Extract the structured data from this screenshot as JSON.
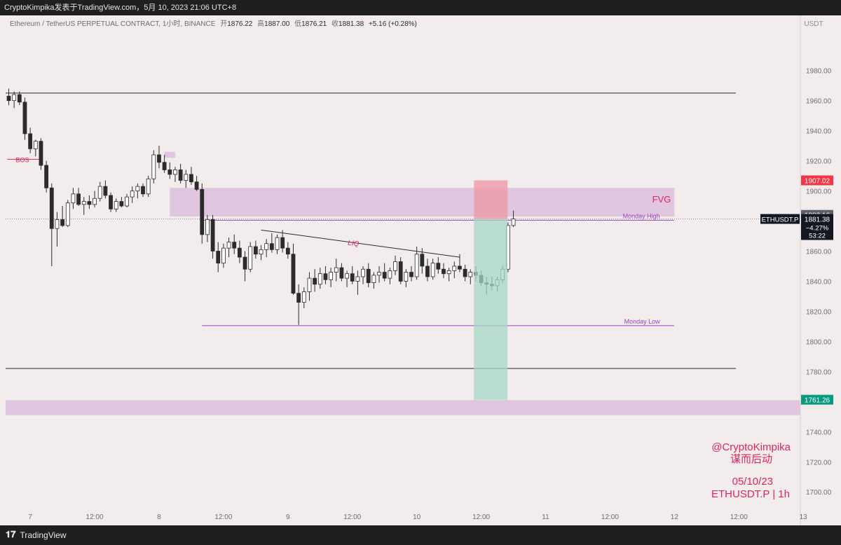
{
  "header": {
    "publish_line": "CryptoKimpika发表于TradingView.com，5月 10, 2023 21:06 UTC+8"
  },
  "footer": {
    "brand": "TradingView",
    "logo_icon": "tradingview-logo-icon"
  },
  "symbol_bar": {
    "symbol": "Ethereum / TetherUS PERPETUAL CONTRACT, 1小时, BINANCE",
    "open_label": "开",
    "open": "1876.22",
    "high_label": "高",
    "high": "1887.00",
    "low_label": "低",
    "low": "1876.21",
    "close_label": "收",
    "close": "1881.38",
    "change": "+5.16 (+0.28%)"
  },
  "watermark": {
    "handle": "@CryptoKimpika",
    "tagline": "谋而后动",
    "date": "05/10/23",
    "pair_tf": "ETHUSDT.P | 1h"
  },
  "colors": {
    "background": "#f3eced",
    "up_candle": "#ffffff",
    "down_candle": "#2b2b2b",
    "wick": "#2b2b2b",
    "zone_fill": "#dcc1dc",
    "monday_line": "#9c3fbf",
    "label_pink": "#e0235e",
    "stop_zone": "#ec9aa6",
    "target_zone": "#a6d8c6",
    "price_tag_red": "#f23645",
    "price_tag_green": "#089981",
    "price_tag_gray": "#5d606b",
    "last_price_tag": "#131722"
  },
  "chart_data": {
    "type": "candlestick",
    "currency": "USDT",
    "timeframe": "1h",
    "ylim": [
      1688,
      1998
    ],
    "y_ticks": [
      1700,
      1720,
      1740,
      1760,
      1780,
      1800,
      1820,
      1840,
      1860,
      1880,
      1900,
      1920,
      1940,
      1960,
      1980
    ],
    "y_tick_labels": [
      "1700.00",
      "1720.00",
      "1740.00",
      "1760.00",
      "1780.00",
      "1800.00",
      "1820.00",
      "1840.00",
      "1860.00",
      "1880.00",
      "1900.00",
      "1920.00",
      "1940.00",
      "1960.00",
      "1980.00"
    ],
    "bars_per_day": 24,
    "x_start": "2023-05-06 20:00",
    "x_ticks": [
      {
        "bar": 4,
        "label": "7"
      },
      {
        "bar": 16,
        "label": "12:00"
      },
      {
        "bar": 28,
        "label": "8"
      },
      {
        "bar": 40,
        "label": "12:00"
      },
      {
        "bar": 52,
        "label": "9"
      },
      {
        "bar": 64,
        "label": "12:00"
      },
      {
        "bar": 76,
        "label": "10"
      },
      {
        "bar": 88,
        "label": "12:00"
      },
      {
        "bar": 100,
        "label": "11"
      },
      {
        "bar": 112,
        "label": "12:00"
      },
      {
        "bar": 124,
        "label": "12"
      },
      {
        "bar": 136,
        "label": "12:00"
      },
      {
        "bar": 148,
        "label": "13"
      },
      {
        "bar": 160,
        "label": "12:00"
      }
    ],
    "ohlc": [
      [
        1963,
        1968,
        1957,
        1960
      ],
      [
        1960,
        1966,
        1955,
        1964
      ],
      [
        1964,
        1966,
        1957,
        1959
      ],
      [
        1959,
        1962,
        1934,
        1938
      ],
      [
        1938,
        1942,
        1925,
        1928
      ],
      [
        1928,
        1934,
        1923,
        1933
      ],
      [
        1933,
        1935,
        1914,
        1917
      ],
      [
        1917,
        1920,
        1899,
        1902
      ],
      [
        1902,
        1905,
        1850,
        1875
      ],
      [
        1875,
        1886,
        1863,
        1881
      ],
      [
        1881,
        1890,
        1876,
        1877
      ],
      [
        1877,
        1894,
        1876,
        1892
      ],
      [
        1892,
        1902,
        1888,
        1898
      ],
      [
        1898,
        1902,
        1890,
        1891
      ],
      [
        1891,
        1896,
        1884,
        1893
      ],
      [
        1893,
        1897,
        1888,
        1891
      ],
      [
        1891,
        1900,
        1889,
        1895
      ],
      [
        1895,
        1906,
        1893,
        1903
      ],
      [
        1903,
        1907,
        1895,
        1897
      ],
      [
        1897,
        1899,
        1886,
        1888
      ],
      [
        1888,
        1895,
        1886,
        1893
      ],
      [
        1893,
        1896,
        1889,
        1890
      ],
      [
        1890,
        1898,
        1889,
        1896
      ],
      [
        1896,
        1903,
        1892,
        1900
      ],
      [
        1900,
        1905,
        1895,
        1903
      ],
      [
        1903,
        1905,
        1896,
        1898
      ],
      [
        1898,
        1910,
        1896,
        1908
      ],
      [
        1908,
        1927,
        1905,
        1924
      ],
      [
        1924,
        1930,
        1915,
        1919
      ],
      [
        1919,
        1924,
        1912,
        1914
      ],
      [
        1914,
        1919,
        1908,
        1911
      ],
      [
        1911,
        1916,
        1906,
        1914
      ],
      [
        1914,
        1918,
        1905,
        1907
      ],
      [
        1907,
        1914,
        1902,
        1911
      ],
      [
        1911,
        1916,
        1904,
        1906
      ],
      [
        1906,
        1910,
        1900,
        1901
      ],
      [
        1901,
        1905,
        1865,
        1871
      ],
      [
        1871,
        1884,
        1866,
        1881
      ],
      [
        1881,
        1884,
        1855,
        1860
      ],
      [
        1860,
        1866,
        1846,
        1852
      ],
      [
        1852,
        1865,
        1849,
        1862
      ],
      [
        1862,
        1869,
        1856,
        1866
      ],
      [
        1866,
        1871,
        1858,
        1862
      ],
      [
        1862,
        1867,
        1852,
        1856
      ],
      [
        1856,
        1860,
        1840,
        1848
      ],
      [
        1848,
        1866,
        1846,
        1863
      ],
      [
        1863,
        1867,
        1855,
        1858
      ],
      [
        1858,
        1864,
        1854,
        1861
      ],
      [
        1861,
        1868,
        1856,
        1865
      ],
      [
        1865,
        1872,
        1859,
        1861
      ],
      [
        1861,
        1871,
        1858,
        1869
      ],
      [
        1869,
        1874,
        1859,
        1862
      ],
      [
        1862,
        1866,
        1855,
        1858
      ],
      [
        1858,
        1865,
        1831,
        1832
      ],
      [
        1832,
        1838,
        1811,
        1826
      ],
      [
        1826,
        1836,
        1822,
        1833
      ],
      [
        1833,
        1846,
        1827,
        1842
      ],
      [
        1842,
        1848,
        1833,
        1838
      ],
      [
        1838,
        1849,
        1835,
        1845
      ],
      [
        1845,
        1850,
        1838,
        1841
      ],
      [
        1841,
        1849,
        1836,
        1846
      ],
      [
        1846,
        1855,
        1840,
        1849
      ],
      [
        1849,
        1852,
        1840,
        1842
      ],
      [
        1842,
        1847,
        1836,
        1845
      ],
      [
        1845,
        1850,
        1838,
        1840
      ],
      [
        1840,
        1847,
        1831,
        1843
      ],
      [
        1843,
        1850,
        1838,
        1848
      ],
      [
        1848,
        1852,
        1836,
        1839
      ],
      [
        1839,
        1846,
        1835,
        1844
      ],
      [
        1844,
        1850,
        1839,
        1846
      ],
      [
        1846,
        1852,
        1840,
        1842
      ],
      [
        1842,
        1849,
        1838,
        1847
      ],
      [
        1847,
        1857,
        1844,
        1853
      ],
      [
        1853,
        1856,
        1838,
        1840
      ],
      [
        1840,
        1848,
        1836,
        1846
      ],
      [
        1846,
        1850,
        1840,
        1843
      ],
      [
        1843,
        1863,
        1841,
        1858
      ],
      [
        1858,
        1862,
        1845,
        1850
      ],
      [
        1850,
        1855,
        1840,
        1843
      ],
      [
        1843,
        1855,
        1841,
        1852
      ],
      [
        1852,
        1856,
        1845,
        1848
      ],
      [
        1848,
        1852,
        1842,
        1845
      ],
      [
        1845,
        1849,
        1840,
        1847
      ],
      [
        1847,
        1853,
        1842,
        1850
      ],
      [
        1850,
        1858,
        1846,
        1848
      ],
      [
        1848,
        1851,
        1840,
        1843
      ],
      [
        1843,
        1848,
        1838,
        1846
      ],
      [
        1846,
        1850,
        1840,
        1844
      ],
      [
        1844,
        1847,
        1837,
        1839
      ],
      [
        1839,
        1843,
        1831,
        1838
      ],
      [
        1838,
        1843,
        1834,
        1837
      ],
      [
        1837,
        1843,
        1833,
        1841
      ],
      [
        1841,
        1850,
        1839,
        1848
      ],
      [
        1848,
        1879,
        1846,
        1877
      ],
      [
        1877,
        1887,
        1876,
        1881.4
      ]
    ],
    "levels": [
      {
        "type": "hline",
        "price": 1965,
        "from_bar": 0,
        "to_bar": 135
      },
      {
        "type": "hline",
        "price": 1782,
        "from_bar": 0,
        "to_bar": 135
      },
      {
        "type": "hline",
        "price": 1880.5,
        "from_bar": 36,
        "to_bar": 123,
        "label": "Monday High"
      },
      {
        "type": "hline",
        "price": 1810.5,
        "from_bar": 36,
        "to_bar": 123,
        "label": "Monday Low"
      }
    ],
    "trendline": {
      "from_bar": 47,
      "from_price": 1874,
      "to_bar": 84,
      "to_price": 1856,
      "label": "LIQ"
    },
    "zones": [
      {
        "label": "FVG",
        "top": 1902,
        "bottom": 1883,
        "from_bar": 30,
        "to_bar": 124
      },
      {
        "top": 1926,
        "bottom": 1922,
        "from_bar": 29,
        "to_bar": 31
      },
      {
        "top": 1761,
        "bottom": 1751,
        "from_bar": 0,
        "to_bar": 146
      }
    ],
    "bos": {
      "label": "BOS",
      "price": 1921,
      "from_bar": 0,
      "to_bar": 6
    },
    "position": {
      "entry": 1881.4,
      "stop": 1907.02,
      "target": 1761.26,
      "from_bar": 86,
      "to_bar": 92
    },
    "price_tags": [
      {
        "price": 1907.02,
        "label": "1907.02",
        "kind": "stop"
      },
      {
        "price": 1883.16,
        "label": "1883.16",
        "kind": "gray"
      },
      {
        "price": 1881.38,
        "label": "1881.38",
        "symbol": "ETHUSDT.P",
        "change": "−4.27%",
        "countdown": "53:22",
        "kind": "last"
      },
      {
        "price": 1761.26,
        "label": "1761.26",
        "kind": "target"
      }
    ]
  }
}
